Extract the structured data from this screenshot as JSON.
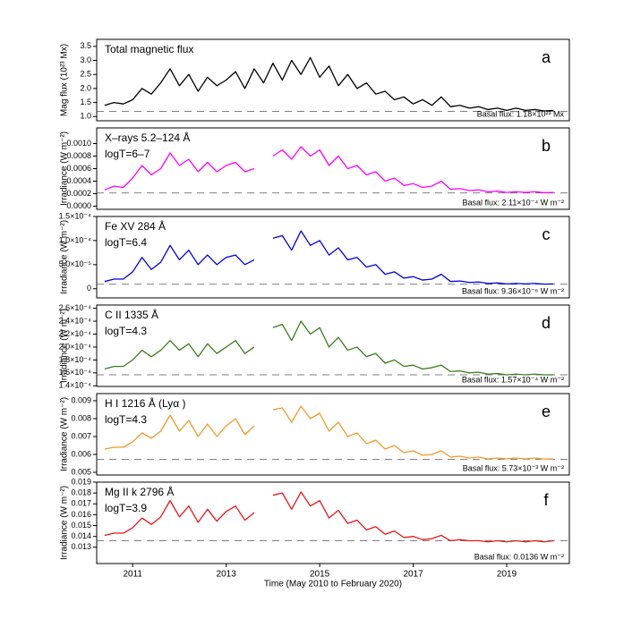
{
  "chart_data": [
    {
      "type": "line",
      "title": "Total magnetic flux",
      "panel": "a",
      "ylabel": "Mag flux (10²³ Mx)",
      "color": "#000000",
      "basal": 1.18,
      "basal_label": "Basal flux: 1.18×10²³ Mx",
      "xlim": [
        2010.23,
        2020.34
      ],
      "ylim": [
        0.85,
        3.75
      ],
      "yticks": [
        {
          "value": 1,
          "label": "1.0"
        },
        {
          "value": 1.5,
          "label": "1.5"
        },
        {
          "value": 2,
          "label": "2.0"
        },
        {
          "value": 2.5,
          "label": "2.5"
        },
        {
          "value": 3,
          "label": "3.0"
        },
        {
          "value": 3.5,
          "label": "3.5"
        }
      ],
      "x": [
        2010.4,
        2010.6,
        2010.8,
        2011.0,
        2011.2,
        2011.4,
        2011.6,
        2011.8,
        2012.0,
        2012.2,
        2012.4,
        2012.6,
        2012.8,
        2013.0,
        2013.2,
        2013.4,
        2013.6,
        2013.8,
        2014.0,
        2014.2,
        2014.4,
        2014.6,
        2014.8,
        2015.0,
        2015.2,
        2015.4,
        2015.6,
        2015.8,
        2016.0,
        2016.2,
        2016.4,
        2016.6,
        2016.8,
        2017.0,
        2017.2,
        2017.4,
        2017.6,
        2017.8,
        2018.0,
        2018.2,
        2018.4,
        2018.6,
        2018.8,
        2019.0,
        2019.2,
        2019.4,
        2019.6,
        2019.8,
        2020.0
      ],
      "values": [
        1.4,
        1.5,
        1.45,
        1.6,
        2.0,
        1.8,
        2.2,
        2.7,
        2.1,
        2.5,
        1.9,
        2.4,
        2.1,
        2.3,
        2.6,
        2.0,
        2.7,
        2.2,
        2.9,
        2.3,
        3.0,
        2.5,
        3.1,
        2.4,
        2.8,
        2.1,
        2.5,
        2.0,
        2.2,
        1.8,
        1.9,
        1.6,
        1.7,
        1.45,
        1.6,
        1.4,
        1.7,
        1.35,
        1.4,
        1.3,
        1.35,
        1.25,
        1.3,
        1.22,
        1.3,
        1.22,
        1.25,
        1.2,
        1.22
      ]
    },
    {
      "type": "line",
      "title": "X–rays 5.2–124 Å",
      "subtitle": "logT=6–7",
      "panel": "b",
      "ylabel": "Irradiance (W m⁻²)",
      "color": "#ff00ff",
      "basal": 0.000211,
      "basal_label": "Basal flux: 2.11×10⁻⁴ W m⁻²",
      "xlim": [
        2010.23,
        2020.34
      ],
      "ylim": [
        -5e-05,
        0.00125
      ],
      "yticks": [
        {
          "value": 0,
          "label": "0.0000"
        },
        {
          "value": 0.0002,
          "label": "0.0002"
        },
        {
          "value": 0.0004,
          "label": "0.0004"
        },
        {
          "value": 0.0006,
          "label": "0.0006"
        },
        {
          "value": 0.0008,
          "label": "0.0008"
        },
        {
          "value": 0.001,
          "label": "0.0010"
        }
      ],
      "x": [
        2010.4,
        2010.6,
        2010.8,
        2011.0,
        2011.2,
        2011.4,
        2011.6,
        2011.8,
        2012.0,
        2012.2,
        2012.4,
        2012.6,
        2012.8,
        2013.0,
        2013.2,
        2013.4,
        2013.6,
        2013.8,
        2014.0,
        2014.2,
        2014.4,
        2014.6,
        2014.8,
        2015.0,
        2015.2,
        2015.4,
        2015.6,
        2015.8,
        2016.0,
        2016.2,
        2016.4,
        2016.6,
        2016.8,
        2017.0,
        2017.2,
        2017.4,
        2017.6,
        2017.8,
        2018.0,
        2018.2,
        2018.4,
        2018.6,
        2018.8,
        2019.0,
        2019.2,
        2019.4,
        2019.6,
        2019.8,
        2020.0
      ],
      "values": [
        0.00026,
        0.00032,
        0.0003,
        0.00045,
        0.00065,
        0.0005,
        0.0006,
        0.00085,
        0.00065,
        0.00075,
        0.00055,
        0.0007,
        0.00055,
        0.00065,
        0.0007,
        0.00055,
        0.0006,
        null,
        0.0008,
        0.0009,
        0.00075,
        0.00095,
        0.0008,
        0.0009,
        0.00065,
        0.0008,
        0.0006,
        0.00065,
        0.0005,
        0.00055,
        0.0004,
        0.00045,
        0.00033,
        0.00036,
        0.0003,
        0.00032,
        0.0004,
        0.00027,
        0.00028,
        0.00025,
        0.00026,
        0.00023,
        0.00024,
        0.00022,
        0.00023,
        0.00022,
        0.00023,
        0.000215,
        0.00022
      ]
    },
    {
      "type": "line",
      "title": "Fe XV 284 Å",
      "subtitle": "logT=6.4",
      "panel": "c",
      "ylabel": "Irradiance (W m⁻²)",
      "color": "#0000dd",
      "basal": 9.36e-06,
      "basal_label": "Basal flux: 9.36×10⁻⁶ W m⁻²",
      "xlim": [
        2010.23,
        2020.34
      ],
      "ylim": [
        -1.9e-05,
        0.00015
      ],
      "yticks": [
        0,
        {
          "value": 5e-05,
          "label": "5.0×10⁻⁵"
        },
        {
          "value": 0.0001,
          "label": "1.0×10⁻⁴"
        },
        {
          "value": 0.00015,
          "label": "1.5×10⁻⁴"
        }
      ],
      "x": [
        2010.4,
        2010.6,
        2010.8,
        2011.0,
        2011.2,
        2011.4,
        2011.6,
        2011.8,
        2012.0,
        2012.2,
        2012.4,
        2012.6,
        2012.8,
        2013.0,
        2013.2,
        2013.4,
        2013.6,
        2013.8,
        2014.0,
        2014.2,
        2014.4,
        2014.6,
        2014.8,
        2015.0,
        2015.2,
        2015.4,
        2015.6,
        2015.8,
        2016.0,
        2016.2,
        2016.4,
        2016.6,
        2016.8,
        2017.0,
        2017.2,
        2017.4,
        2017.6,
        2017.8,
        2018.0,
        2018.2,
        2018.4,
        2018.6,
        2018.8,
        2019.0,
        2019.2,
        2019.4,
        2019.6,
        2019.8,
        2020.0
      ],
      "values": [
        1.5e-05,
        2e-05,
        2e-05,
        3.5e-05,
        6.5e-05,
        4e-05,
        5.5e-05,
        9e-05,
        6e-05,
        8e-05,
        5e-05,
        7e-05,
        5e-05,
        6.5e-05,
        7e-05,
        5e-05,
        6e-05,
        null,
        0.000105,
        0.00011,
        8e-05,
        0.00012,
        9e-05,
        0.0001,
        7e-05,
        8.5e-05,
        6e-05,
        6.5e-05,
        4.5e-05,
        5e-05,
        3e-05,
        3.5e-05,
        2.2e-05,
        2.5e-05,
        1.8e-05,
        2e-05,
        3e-05,
        1.5e-05,
        1.6e-05,
        1.3e-05,
        1.4e-05,
        1.1e-05,
        1.2e-05,
        1e-05,
        1.1e-05,
        1e-05,
        1.1e-05,
        9.5e-06,
        1e-05
      ]
    },
    {
      "type": "line",
      "title": "C II 1335 Å",
      "subtitle": "logT=4.3",
      "panel": "d",
      "ylabel": "Irradiance (W m⁻²)",
      "color": "#3a7d1f",
      "basal": 0.000157,
      "basal_label": "Basal flux: 1.57×10⁻⁴ W m⁻²",
      "xlim": [
        2010.23,
        2020.34
      ],
      "ylim": [
        0.000139,
        0.000265
      ],
      "yticks": [
        {
          "value": 0.00014,
          "label": "1.4×10⁻⁴"
        },
        {
          "value": 0.00016,
          "label": "1.6×10⁻⁴"
        },
        {
          "value": 0.00018,
          "label": "1.8×10⁻⁴"
        },
        {
          "value": 0.0002,
          "label": "2.0×10⁻⁴"
        },
        {
          "value": 0.00022,
          "label": "2.2×10⁻⁴"
        },
        {
          "value": 0.00024,
          "label": "2.4×10⁻⁴"
        },
        {
          "value": 0.00026,
          "label": "2.6×10⁻⁴"
        }
      ],
      "x": [
        2010.4,
        2010.6,
        2010.8,
        2011.0,
        2011.2,
        2011.4,
        2011.6,
        2011.8,
        2012.0,
        2012.2,
        2012.4,
        2012.6,
        2012.8,
        2013.0,
        2013.2,
        2013.4,
        2013.6,
        2013.8,
        2014.0,
        2014.2,
        2014.4,
        2014.6,
        2014.8,
        2015.0,
        2015.2,
        2015.4,
        2015.6,
        2015.8,
        2016.0,
        2016.2,
        2016.4,
        2016.6,
        2016.8,
        2017.0,
        2017.2,
        2017.4,
        2017.6,
        2017.8,
        2018.0,
        2018.2,
        2018.4,
        2018.6,
        2018.8,
        2019.0,
        2019.2,
        2019.4,
        2019.6,
        2019.8,
        2020.0
      ],
      "values": [
        0.000166,
        0.00017,
        0.00017,
        0.00018,
        0.000195,
        0.000185,
        0.000195,
        0.00021,
        0.000195,
        0.000205,
        0.000185,
        0.000205,
        0.00019,
        0.0002,
        0.00021,
        0.00019,
        0.0002,
        null,
        0.00023,
        0.000235,
        0.00021,
        0.00024,
        0.00022,
        0.00023,
        0.0002,
        0.000215,
        0.000195,
        0.0002,
        0.000185,
        0.00019,
        0.000175,
        0.00018,
        0.00017,
        0.000172,
        0.000166,
        0.000168,
        0.000172,
        0.000162,
        0.000163,
        0.00016,
        0.000161,
        0.000158,
        0.000159,
        0.000157,
        0.000158,
        0.000157,
        0.000158,
        0.000157,
        0.000157
      ]
    },
    {
      "type": "line",
      "title": "H I 1216 Å (Lyα )",
      "subtitle": "logT=4.3",
      "panel": "e",
      "ylabel": "Irradiance (W m⁻²)",
      "color": "#f39a2c",
      "basal": 0.00573,
      "basal_label": "Basal flux: 5.73×10⁻³ W m⁻²",
      "xlim": [
        2010.23,
        2020.34
      ],
      "ylim": [
        0.00485,
        0.0094
      ],
      "yticks": [
        0.005,
        0.006,
        0.007,
        0.008,
        0.009
      ],
      "x": [
        2010.4,
        2010.6,
        2010.8,
        2011.0,
        2011.2,
        2011.4,
        2011.6,
        2011.8,
        2012.0,
        2012.2,
        2012.4,
        2012.6,
        2012.8,
        2013.0,
        2013.2,
        2013.4,
        2013.6,
        2013.8,
        2014.0,
        2014.2,
        2014.4,
        2014.6,
        2014.8,
        2015.0,
        2015.2,
        2015.4,
        2015.6,
        2015.8,
        2016.0,
        2016.2,
        2016.4,
        2016.6,
        2016.8,
        2017.0,
        2017.2,
        2017.4,
        2017.6,
        2017.8,
        2018.0,
        2018.2,
        2018.4,
        2018.6,
        2018.8,
        2019.0,
        2019.2,
        2019.4,
        2019.6,
        2019.8,
        2020.0
      ],
      "values": [
        0.0063,
        0.0064,
        0.0064,
        0.0067,
        0.0072,
        0.0069,
        0.0073,
        0.0082,
        0.0073,
        0.0079,
        0.007,
        0.0077,
        0.007,
        0.0076,
        0.008,
        0.0071,
        0.0076,
        null,
        0.0085,
        0.0086,
        0.0078,
        0.0087,
        0.008,
        0.0083,
        0.0073,
        0.0078,
        0.007,
        0.0072,
        0.0066,
        0.0068,
        0.0063,
        0.0065,
        0.0061,
        0.0062,
        0.00595,
        0.006,
        0.0062,
        0.00585,
        0.0059,
        0.0058,
        0.00585,
        0.00575,
        0.0058,
        0.00575,
        0.0058,
        0.00575,
        0.0058,
        0.00574,
        0.00575
      ]
    },
    {
      "type": "line",
      "title": "Mg II k 2796 Å",
      "subtitle": "logT=3.9",
      "panel": "f",
      "ylabel": "Irradiance (W m⁻²)",
      "color": "#e8161b",
      "basal": 0.0136,
      "basal_label": "Basal flux: 0.0136 W m⁻²",
      "xlabel": "Time (May 2010 to February 2020)",
      "xlim": [
        2010.23,
        2020.34
      ],
      "ylim": [
        0.0115,
        0.019
      ],
      "xticks": [
        2011,
        2013,
        2015,
        2017,
        2019
      ],
      "yticks": [
        0.013,
        0.014,
        0.015,
        0.016,
        0.017,
        0.018,
        0.019
      ],
      "x": [
        2010.4,
        2010.6,
        2010.8,
        2011.0,
        2011.2,
        2011.4,
        2011.6,
        2011.8,
        2012.0,
        2012.2,
        2012.4,
        2012.6,
        2012.8,
        2013.0,
        2013.2,
        2013.4,
        2013.6,
        2013.8,
        2014.0,
        2014.2,
        2014.4,
        2014.6,
        2014.8,
        2015.0,
        2015.2,
        2015.4,
        2015.6,
        2015.8,
        2016.0,
        2016.2,
        2016.4,
        2016.6,
        2016.8,
        2017.0,
        2017.2,
        2017.4,
        2017.6,
        2017.8,
        2018.0,
        2018.2,
        2018.4,
        2018.6,
        2018.8,
        2019.0,
        2019.2,
        2019.4,
        2019.6,
        2019.8,
        2020.0
      ],
      "values": [
        0.0141,
        0.0143,
        0.0143,
        0.0148,
        0.0157,
        0.0151,
        0.0158,
        0.0173,
        0.0158,
        0.0168,
        0.0153,
        0.0165,
        0.0154,
        0.0163,
        0.0168,
        0.0155,
        0.0162,
        null,
        0.0178,
        0.018,
        0.0165,
        0.0181,
        0.0168,
        0.0173,
        0.0157,
        0.0164,
        0.0152,
        0.0155,
        0.0146,
        0.0149,
        0.0142,
        0.0145,
        0.0139,
        0.014,
        0.0137,
        0.0138,
        0.0141,
        0.0136,
        0.0137,
        0.0136,
        0.0136,
        0.0135,
        0.0136,
        0.0135,
        0.0136,
        0.0135,
        0.0136,
        0.0135,
        0.0136
      ]
    }
  ]
}
